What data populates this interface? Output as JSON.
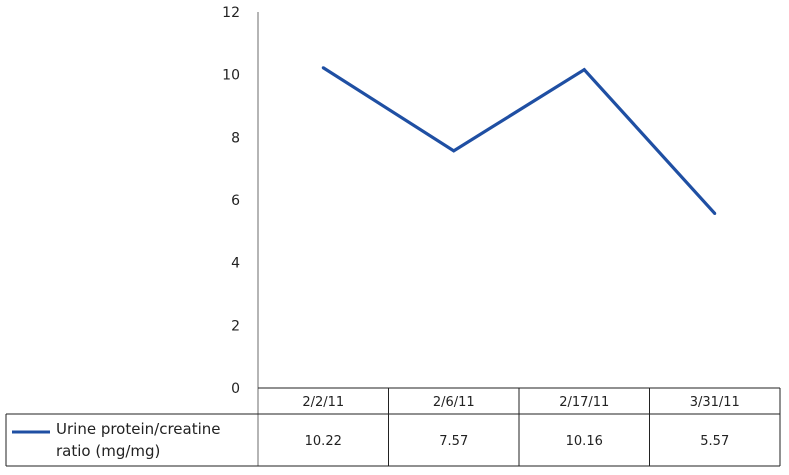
{
  "chart_data": {
    "type": "line",
    "categories": [
      "2/2/11",
      "2/6/11",
      "2/17/11",
      "3/31/11"
    ],
    "series": [
      {
        "name": "Urine protein/creatine ratio (mg/mg)",
        "name_lines": [
          "Urine protein/creatine",
          "ratio (mg/mg)"
        ],
        "values": [
          10.22,
          7.57,
          10.16,
          5.57
        ],
        "value_labels": [
          "10.22",
          "7.57",
          "10.16",
          "5.57"
        ],
        "color": "#1f4fa3"
      }
    ],
    "ylim": [
      0,
      12
    ],
    "yticks": [
      "0",
      "2",
      "4",
      "6",
      "8",
      "10",
      "12"
    ],
    "grid": false,
    "legend": "data-table-bottom",
    "data_table": true
  }
}
